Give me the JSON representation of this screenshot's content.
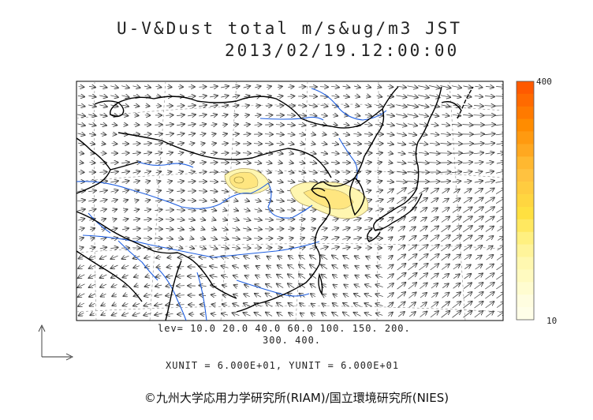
{
  "title": {
    "line1": "U-V&Dust total m/s&ug/m3 JST",
    "line2": "2013/02/19.12:00:00"
  },
  "contour_levels": {
    "line1": "lev= 10.0 20.0 40.0 60.0 100. 150. 200.",
    "line2": "300. 400."
  },
  "units_line": "XUNIT = 6.000E+01, YUNIT = 6.000E+01",
  "colorbar": {
    "max_label": "400",
    "min_label": "10",
    "colors": [
      "#ff5a00",
      "#ff6a00",
      "#ff7a00",
      "#ff8c00",
      "#ff9a10",
      "#ffa820",
      "#ffb830",
      "#ffc240",
      "#ffcc40",
      "#ffd640",
      "#ffe040",
      "#ffe860",
      "#fff080",
      "#fff49a",
      "#fff8b0",
      "#fffac0",
      "#fffcd0",
      "#fffde0",
      "#fffee8"
    ]
  },
  "copyright": "©九州大学応用力学研究所(RIAM)/国立環境研究所(NIES)",
  "colors": {
    "coast": "#000000",
    "river": "#1f5fe0",
    "grid": "#888888",
    "dust_light": "#fff6b0",
    "dust_mid": "#ffe680",
    "contour": "#b0a060"
  }
}
